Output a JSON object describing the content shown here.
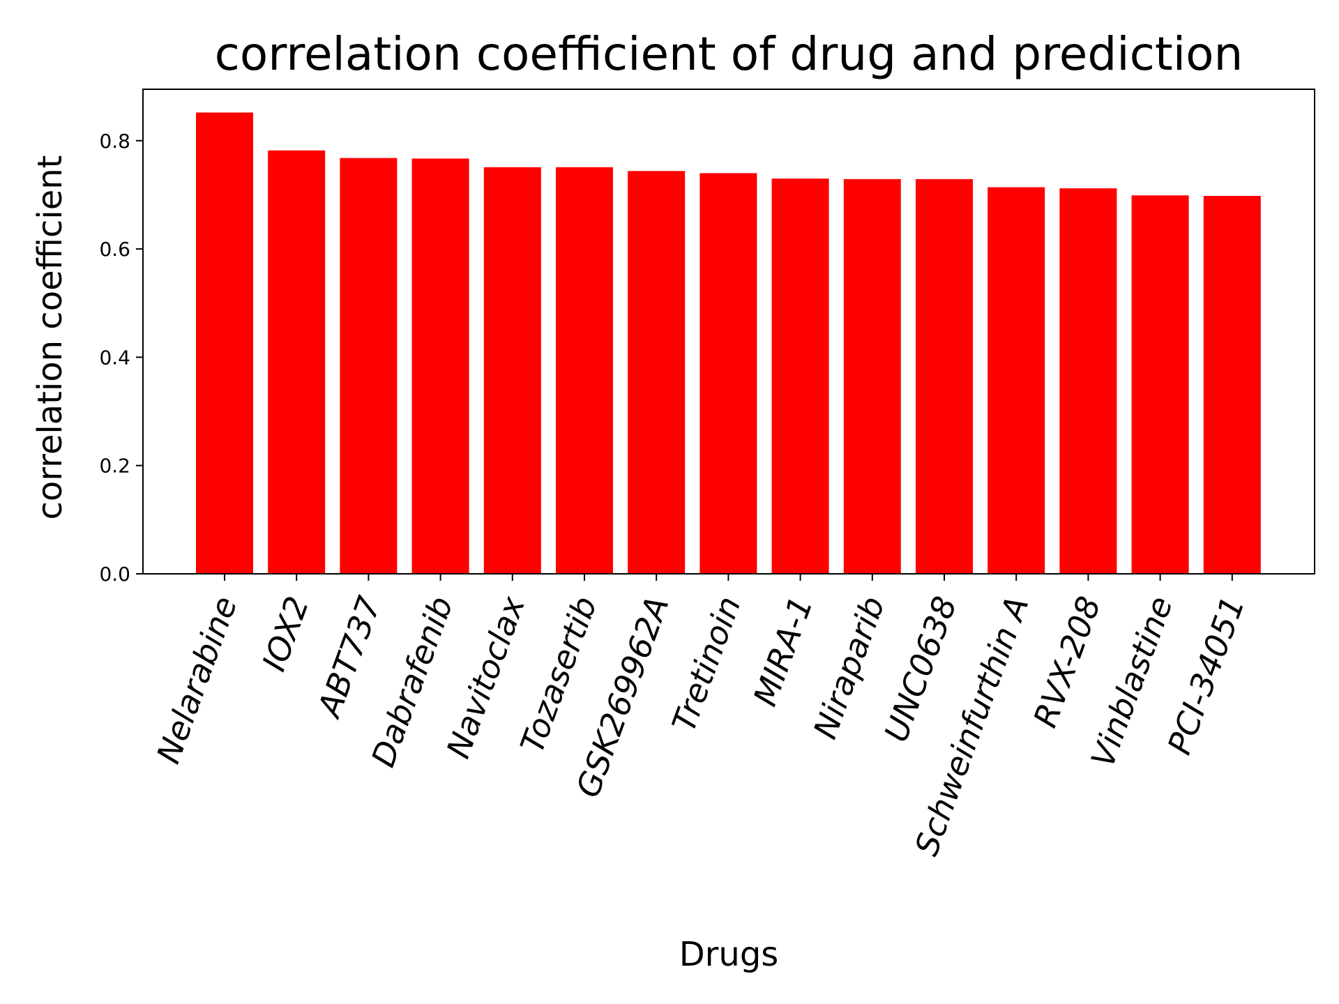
{
  "chart_data": {
    "type": "bar",
    "title": "correlation coefficient of drug and prediction",
    "xlabel": "Drugs",
    "ylabel": "correlation coefficient",
    "categories": [
      "Nelarabine",
      "IOX2",
      "ABT737",
      "Dabrafenib",
      "Navitoclax",
      "Tozasertib",
      "GSK269962A",
      "Tretinoin",
      "MIRA-1",
      "Niraparib",
      "UNC0638",
      "Schweinfurthin A",
      "RVX-208",
      "Vinblastine",
      "PCI-34051"
    ],
    "values": [
      0.852,
      0.782,
      0.768,
      0.767,
      0.751,
      0.751,
      0.744,
      0.74,
      0.73,
      0.729,
      0.729,
      0.714,
      0.712,
      0.699,
      0.698
    ],
    "yticks": [
      0.0,
      0.2,
      0.4,
      0.6,
      0.8
    ],
    "ytick_labels": [
      "0.0",
      "0.2",
      "0.4",
      "0.6",
      "0.8"
    ],
    "ylim": [
      0,
      0.895
    ],
    "grid": false,
    "legend": "none",
    "bar_color": "#ff0000"
  }
}
